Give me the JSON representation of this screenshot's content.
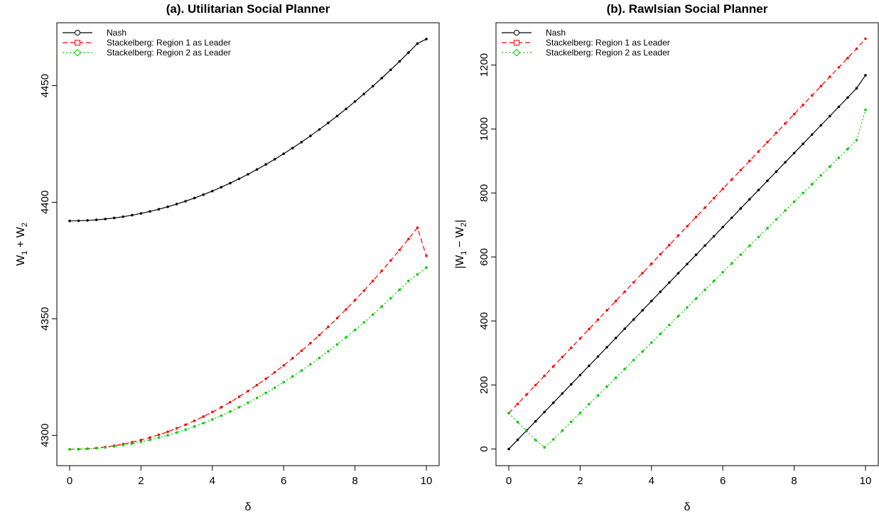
{
  "chart_data": [
    {
      "type": "line",
      "title": "(a). Utilitarian Social Planner",
      "xlabel": "δ",
      "ylabel_main": "W",
      "ylabel_sub1": "1",
      "ylabel_mid": " + W",
      "ylabel_sub2": "2",
      "xlim": [
        0,
        10
      ],
      "ylim": [
        4287,
        4477
      ],
      "x_ticks": [
        0,
        2,
        4,
        6,
        8,
        10
      ],
      "y_ticks": [
        4300,
        4350,
        4400,
        4450
      ],
      "legend_position": "top-left",
      "x": [
        0,
        0.25,
        0.5,
        0.75,
        1,
        1.25,
        1.5,
        1.75,
        2,
        2.25,
        2.5,
        2.75,
        3,
        3.25,
        3.5,
        3.75,
        4,
        4.25,
        4.5,
        4.75,
        5,
        5.25,
        5.5,
        5.75,
        6,
        6.25,
        6.5,
        6.75,
        7,
        7.25,
        7.5,
        7.75,
        8,
        8.25,
        8.5,
        8.75,
        9,
        9.25,
        9.5,
        9.75,
        10
      ],
      "series": [
        {
          "name": "Nash",
          "color": "#000000",
          "dash": "",
          "marker": "circle",
          "values": [
            4392.0,
            4392.05,
            4392.2,
            4392.45,
            4392.8,
            4393.25,
            4393.8,
            4394.45,
            4395.2,
            4396.05,
            4397.0,
            4398.05,
            4399.2,
            4400.45,
            4401.8,
            4403.25,
            4404.8,
            4406.45,
            4408.2,
            4410.05,
            4412.0,
            4414.05,
            4416.2,
            4418.45,
            4420.8,
            4423.25,
            4425.8,
            4428.45,
            4431.2,
            4434.05,
            4437.0,
            4440.05,
            4443.2,
            4446.45,
            4449.8,
            4453.25,
            4456.8,
            4460.45,
            4464.2,
            4468.05,
            4470.0
          ]
        },
        {
          "name": "Stackelberg: Region 1 as Leader",
          "color": "#ff0000",
          "dash": "7,4",
          "marker": "square",
          "values": [
            4294.0,
            4294.06,
            4294.25,
            4294.56,
            4295.0,
            4295.56,
            4296.25,
            4297.06,
            4298.0,
            4299.06,
            4300.25,
            4301.56,
            4303.0,
            4304.56,
            4306.25,
            4308.06,
            4310.0,
            4312.06,
            4314.25,
            4316.56,
            4319.0,
            4321.56,
            4324.25,
            4327.06,
            4330.0,
            4333.06,
            4336.25,
            4339.56,
            4343.0,
            4346.56,
            4350.25,
            4354.06,
            4358.0,
            4362.06,
            4366.25,
            4370.56,
            4375.0,
            4379.56,
            4384.25,
            4389.06,
            4377.0
          ]
        },
        {
          "name": "Stackelberg: Region 2 as Leader",
          "color": "#00cc00",
          "dash": "2,3",
          "marker": "diamond",
          "values": [
            4294.0,
            4294.05,
            4294.2,
            4294.45,
            4294.8,
            4295.25,
            4295.8,
            4296.45,
            4297.2,
            4298.05,
            4299.0,
            4300.05,
            4301.2,
            4302.45,
            4303.8,
            4305.25,
            4306.8,
            4308.45,
            4310.2,
            4312.05,
            4314.0,
            4316.05,
            4318.2,
            4320.45,
            4322.8,
            4325.25,
            4327.8,
            4330.45,
            4333.2,
            4336.05,
            4339.0,
            4342.05,
            4345.2,
            4348.45,
            4351.8,
            4355.25,
            4358.8,
            4362.45,
            4366.2,
            4369.05,
            4372.0
          ]
        }
      ]
    },
    {
      "type": "line",
      "title": "(b). Rawlsian Social Planner",
      "xlabel": "δ",
      "ylabel_main": "|W",
      "ylabel_sub1": "1",
      "ylabel_mid": " − W",
      "ylabel_sub2": "2",
      "ylabel_end": "|",
      "xlim": [
        0,
        10
      ],
      "ylim": [
        -52,
        1332
      ],
      "x_ticks": [
        0,
        2,
        4,
        6,
        8,
        10
      ],
      "y_ticks": [
        0,
        200,
        400,
        600,
        800,
        1000,
        1200
      ],
      "legend_position": "top-left",
      "x": [
        0,
        0.25,
        0.5,
        0.75,
        1,
        1.25,
        1.5,
        1.75,
        2,
        2.25,
        2.5,
        2.75,
        3,
        3.25,
        3.5,
        3.75,
        4,
        4.25,
        4.5,
        4.75,
        5,
        5.25,
        5.5,
        5.75,
        6,
        6.25,
        6.5,
        6.75,
        7,
        7.25,
        7.5,
        7.75,
        8,
        8.25,
        8.5,
        8.75,
        9,
        9.25,
        9.5,
        9.75,
        10
      ],
      "series": [
        {
          "name": "Nash",
          "color": "#000000",
          "dash": "",
          "marker": "circle",
          "values": [
            0,
            28.9,
            57.8,
            86.7,
            115.6,
            144.5,
            173.4,
            202.3,
            231.2,
            260.1,
            289.0,
            317.9,
            346.8,
            375.7,
            404.6,
            433.5,
            462.4,
            491.3,
            520.2,
            549.1,
            578.0,
            606.9,
            635.8,
            664.7,
            693.6,
            722.5,
            751.4,
            780.3,
            809.2,
            838.1,
            867.0,
            895.9,
            924.8,
            953.7,
            982.6,
            1011.5,
            1040.4,
            1069.3,
            1098.2,
            1127.1,
            1168.0
          ]
        },
        {
          "name": "Stackelberg: Region 1 as Leader",
          "color": "#ff0000",
          "dash": "7,4",
          "marker": "square",
          "values": [
            112,
            141.2,
            170.4,
            199.6,
            228.8,
            258.0,
            287.2,
            316.4,
            345.6,
            374.8,
            404.0,
            433.2,
            462.4,
            491.6,
            520.8,
            550.0,
            579.2,
            608.4,
            637.6,
            666.8,
            696.0,
            725.2,
            754.4,
            783.6,
            812.8,
            842.0,
            871.2,
            900.4,
            929.6,
            958.8,
            988.0,
            1017.2,
            1046.4,
            1075.6,
            1104.8,
            1134.0,
            1163.2,
            1192.4,
            1221.6,
            1250.8,
            1282.0
          ]
        },
        {
          "name": "Stackelberg: Region 2 as Leader",
          "color": "#00cc00",
          "dash": "2,3",
          "marker": "diamond",
          "values": [
            112,
            84.0,
            56.0,
            28.0,
            5.0,
            30.0,
            57.5,
            85.0,
            112.5,
            140.0,
            167.5,
            195.0,
            222.5,
            250.0,
            277.5,
            305.0,
            332.5,
            360.0,
            387.5,
            415.0,
            442.5,
            470.0,
            497.5,
            525.0,
            552.5,
            580.0,
            607.5,
            635.0,
            662.5,
            690.0,
            717.5,
            745.0,
            772.5,
            800.0,
            827.5,
            855.0,
            882.5,
            910.0,
            937.5,
            965.0,
            1060.0
          ]
        }
      ]
    }
  ]
}
